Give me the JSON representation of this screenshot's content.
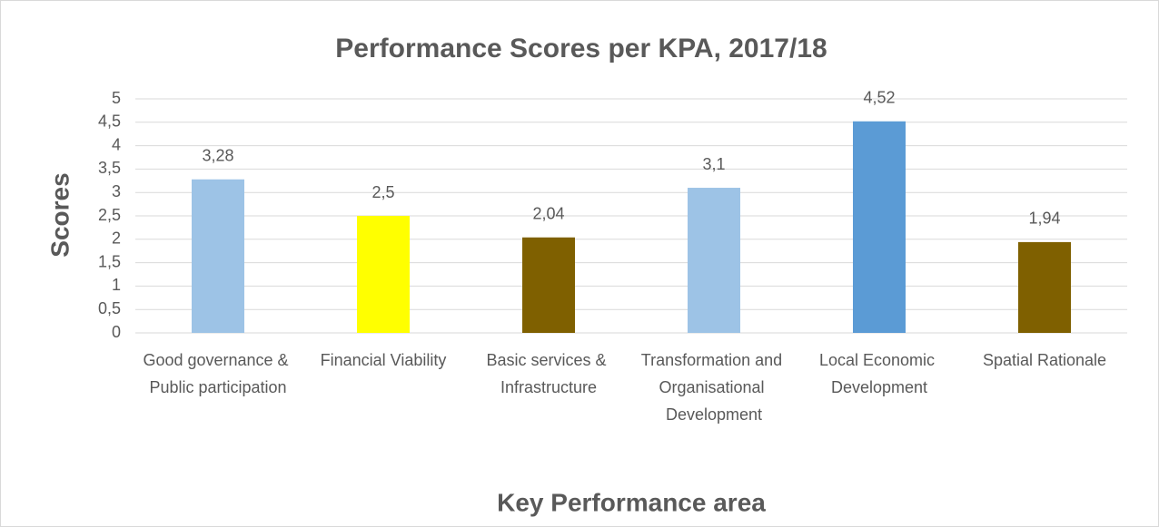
{
  "chart_data": {
    "type": "bar",
    "title": "Performance Scores per KPA, 2017/18",
    "x_label": "Key Performance area",
    "y_label": "Scores",
    "categories": [
      "Good governance & Public participation",
      "Financial Viability",
      "Basic services & Infrastructure",
      "Transformation and Organisational Development",
      "Local Economic Development",
      "Spatial Rationale"
    ],
    "values": [
      3.28,
      2.5,
      2.04,
      3.1,
      4.52,
      1.94
    ],
    "value_labels": [
      "3,28",
      "2,5",
      "2,04",
      "3,1",
      "4,52",
      "1,94"
    ],
    "colors": [
      "#9dc3e6",
      "#ffff00",
      "#7f6000",
      "#9dc3e6",
      "#5b9bd5",
      "#7f6000"
    ],
    "ylim": [
      0,
      5
    ],
    "yticks": [
      0,
      {
        "value": 0.5,
        "label": "0,5"
      },
      1,
      {
        "value": 1.5,
        "label": "1,5"
      },
      2,
      {
        "value": 2.5,
        "label": "2,5"
      },
      3,
      {
        "value": 3.5,
        "label": "3,5"
      },
      4,
      {
        "value": 4.5,
        "label": "4,5"
      },
      5
    ],
    "grid": true
  }
}
